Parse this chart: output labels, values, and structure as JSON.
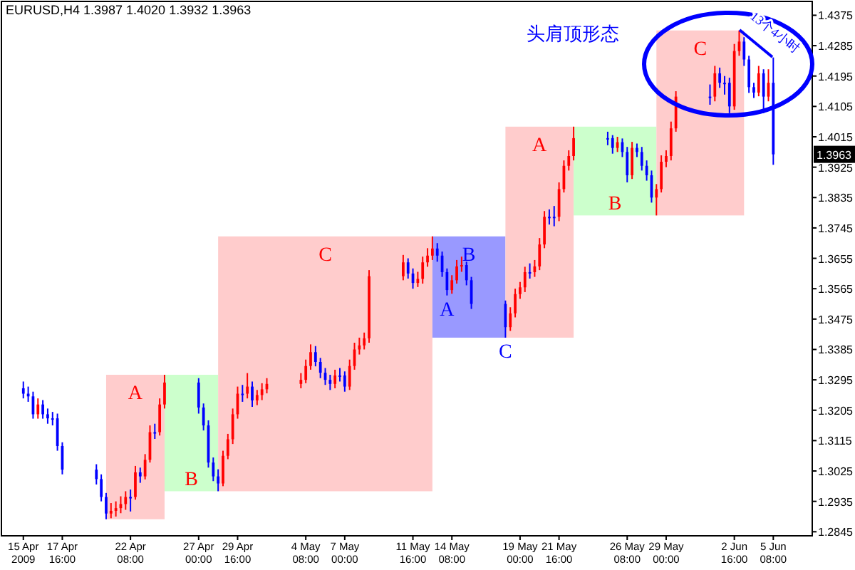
{
  "chart_data": {
    "type": "candlestick",
    "title": "EURUSD,H4  1.3987 1.4020 1.3932 1.3963",
    "x": [
      "2009-04-15T00:00",
      "2009-04-15T08:00",
      "2009-04-15T16:00",
      "2009-04-16T00:00",
      "2009-04-16T08:00",
      "2009-04-16T16:00",
      "2009-04-17T00:00",
      "2009-04-17T08:00",
      "2009-04-17T16:00",
      "2009-04-20T00:00",
      "2009-04-20T08:00",
      "2009-04-20T16:00",
      "2009-04-21T00:00",
      "2009-04-21T08:00",
      "2009-04-21T16:00",
      "2009-04-22T00:00",
      "2009-04-22T08:00",
      "2009-04-22T16:00",
      "2009-04-23T00:00",
      "2009-04-23T08:00",
      "2009-04-23T16:00",
      "2009-04-24T00:00",
      "2009-04-24T08:00",
      "2009-04-24T16:00",
      "2009-04-27T00:00",
      "2009-04-27T08:00",
      "2009-04-27T16:00",
      "2009-04-28T00:00",
      "2009-04-28T08:00",
      "2009-04-28T16:00",
      "2009-04-29T00:00",
      "2009-04-29T08:00",
      "2009-04-29T16:00",
      "2009-04-30T00:00",
      "2009-04-30T08:00",
      "2009-04-30T16:00",
      "2009-05-01T00:00",
      "2009-05-01T08:00",
      "2009-05-01T16:00",
      "2009-05-04T00:00",
      "2009-05-04T08:00",
      "2009-05-04T16:00",
      "2009-05-05T00:00",
      "2009-05-05T08:00",
      "2009-05-05T16:00",
      "2009-05-06T00:00",
      "2009-05-06T08:00",
      "2009-05-06T16:00",
      "2009-05-07T00:00",
      "2009-05-07T08:00",
      "2009-05-07T16:00",
      "2009-05-08T00:00",
      "2009-05-08T08:00",
      "2009-05-08T16:00",
      "2009-05-11T00:00",
      "2009-05-11T08:00",
      "2009-05-11T16:00",
      "2009-05-12T00:00",
      "2009-05-12T08:00",
      "2009-05-12T16:00",
      "2009-05-13T00:00",
      "2009-05-13T08:00",
      "2009-05-13T16:00",
      "2009-05-14T00:00",
      "2009-05-14T08:00",
      "2009-05-14T16:00",
      "2009-05-15T00:00",
      "2009-05-15T08:00",
      "2009-05-15T16:00",
      "2009-05-18T00:00",
      "2009-05-18T08:00",
      "2009-05-18T16:00",
      "2009-05-19T00:00",
      "2009-05-19T08:00",
      "2009-05-19T16:00",
      "2009-05-20T00:00",
      "2009-05-20T08:00",
      "2009-05-20T16:00",
      "2009-05-21T00:00",
      "2009-05-21T08:00",
      "2009-05-21T16:00",
      "2009-05-22T00:00",
      "2009-05-22T08:00",
      "2009-05-22T16:00",
      "2009-05-25T00:00",
      "2009-05-25T08:00",
      "2009-05-25T16:00",
      "2009-05-26T00:00",
      "2009-05-26T08:00",
      "2009-05-26T16:00",
      "2009-05-27T00:00",
      "2009-05-27T08:00",
      "2009-05-27T16:00",
      "2009-05-28T00:00",
      "2009-05-28T08:00",
      "2009-05-28T16:00",
      "2009-05-29T00:00",
      "2009-05-29T08:00",
      "2009-05-29T16:00",
      "2009-06-01T00:00",
      "2009-06-01T08:00",
      "2009-06-01T16:00",
      "2009-06-02T00:00",
      "2009-06-02T08:00",
      "2009-06-02T16:00",
      "2009-06-03T00:00",
      "2009-06-03T08:00",
      "2009-06-03T16:00",
      "2009-06-04T00:00",
      "2009-06-04T08:00",
      "2009-06-04T16:00",
      "2009-06-05T00:00",
      "2009-06-05T08:00"
    ],
    "ohlc": [
      [
        1.327,
        1.329,
        1.324,
        1.3254
      ],
      [
        1.3254,
        1.3275,
        1.323,
        1.3246
      ],
      [
        1.3246,
        1.326,
        1.318,
        1.3193
      ],
      [
        1.3193,
        1.324,
        1.318,
        1.3222
      ],
      [
        1.3222,
        1.3235,
        1.318,
        1.3193
      ],
      [
        1.3193,
        1.321,
        1.3165,
        1.3181
      ],
      [
        1.3181,
        1.32,
        1.316,
        1.3181
      ],
      [
        1.3181,
        1.3195,
        1.3085,
        1.3099
      ],
      [
        1.3099,
        1.311,
        1.3015,
        1.3029
      ],
      [
        1.3029,
        1.3045,
        1.2985,
        1.3001
      ],
      [
        1.3001,
        1.3015,
        1.2935,
        1.2948
      ],
      [
        1.2948,
        1.296,
        1.2882,
        1.2899
      ],
      [
        1.2899,
        1.293,
        1.2885,
        1.2907
      ],
      [
        1.2907,
        1.2935,
        1.289,
        1.2915
      ],
      [
        1.2915,
        1.295,
        1.29,
        1.2927
      ],
      [
        1.2927,
        1.2965,
        1.291,
        1.2948
      ],
      [
        1.2948,
        1.297,
        1.2905,
        1.2948
      ],
      [
        1.2948,
        1.304,
        1.294,
        1.3021
      ],
      [
        1.3021,
        1.3035,
        1.299,
        1.3009
      ],
      [
        1.3009,
        1.3075,
        1.3,
        1.3058
      ],
      [
        1.3058,
        1.316,
        1.305,
        1.314
      ],
      [
        1.314,
        1.3165,
        1.312,
        1.314
      ],
      [
        1.314,
        1.324,
        1.313,
        1.3222
      ],
      [
        1.3222,
        1.331,
        1.321,
        1.3287
      ],
      [
        1.3287,
        1.33,
        1.3195,
        1.3213
      ],
      [
        1.3213,
        1.3225,
        1.3145,
        1.316
      ],
      [
        1.316,
        1.3175,
        1.3035,
        1.305
      ],
      [
        1.305,
        1.3065,
        1.2995,
        1.3009
      ],
      [
        1.3009,
        1.303,
        1.2965,
        1.2988
      ],
      [
        1.2988,
        1.3085,
        1.298,
        1.307
      ],
      [
        1.307,
        1.3135,
        1.306,
        1.3119
      ],
      [
        1.3119,
        1.321,
        1.3105,
        1.3193
      ],
      [
        1.3193,
        1.3275,
        1.318,
        1.3254
      ],
      [
        1.3254,
        1.328,
        1.323,
        1.3254
      ],
      [
        1.3254,
        1.3315,
        1.324,
        1.3275
      ],
      [
        1.3275,
        1.329,
        1.3215,
        1.3234
      ],
      [
        1.3234,
        1.3265,
        1.322,
        1.325
      ],
      [
        1.325,
        1.3285,
        1.3235,
        1.3267
      ],
      [
        1.3267,
        1.33,
        1.3255,
        1.3283
      ],
      [
        1.3283,
        1.3315,
        1.327,
        1.3295
      ],
      [
        1.3295,
        1.3355,
        1.3285,
        1.3336
      ],
      [
        1.3336,
        1.34,
        1.3325,
        1.3377
      ],
      [
        1.3377,
        1.3395,
        1.3335,
        1.3348
      ],
      [
        1.3348,
        1.336,
        1.33,
        1.3316
      ],
      [
        1.3316,
        1.333,
        1.328,
        1.3295
      ],
      [
        1.3295,
        1.331,
        1.3265,
        1.3283
      ],
      [
        1.3283,
        1.3325,
        1.327,
        1.3308
      ],
      [
        1.3308,
        1.333,
        1.329,
        1.3308
      ],
      [
        1.3308,
        1.332,
        1.326,
        1.3275
      ],
      [
        1.3275,
        1.3355,
        1.3265,
        1.3336
      ],
      [
        1.3336,
        1.3405,
        1.3325,
        1.3385
      ],
      [
        1.3385,
        1.342,
        1.337,
        1.3397
      ],
      [
        1.3397,
        1.3435,
        1.3385,
        1.3418
      ],
      [
        1.3418,
        1.362,
        1.3405,
        1.3602
      ],
      [
        1.3602,
        1.3665,
        1.359,
        1.3643
      ],
      [
        1.3643,
        1.3655,
        1.3595,
        1.361
      ],
      [
        1.361,
        1.3625,
        1.3565,
        1.3582
      ],
      [
        1.3582,
        1.3615,
        1.357,
        1.3594
      ],
      [
        1.3594,
        1.366,
        1.358,
        1.3643
      ],
      [
        1.3643,
        1.3685,
        1.363,
        1.3663
      ],
      [
        1.3663,
        1.372,
        1.365,
        1.3684
      ],
      [
        1.3684,
        1.37,
        1.3645,
        1.3663
      ],
      [
        1.3663,
        1.3675,
        1.36,
        1.3614
      ],
      [
        1.3614,
        1.3625,
        1.3545,
        1.3561
      ],
      [
        1.3561,
        1.3605,
        1.355,
        1.359
      ],
      [
        1.359,
        1.365,
        1.358,
        1.3631
      ],
      [
        1.3631,
        1.366,
        1.3615,
        1.3635
      ],
      [
        1.3635,
        1.3645,
        1.3575,
        1.359
      ],
      [
        1.359,
        1.36,
        1.3505,
        1.352
      ],
      [
        1.352,
        1.353,
        1.342,
        1.3451
      ],
      [
        1.3451,
        1.351,
        1.344,
        1.3492
      ],
      [
        1.3492,
        1.3565,
        1.348,
        1.3549
      ],
      [
        1.3549,
        1.3585,
        1.3535,
        1.3569
      ],
      [
        1.3569,
        1.363,
        1.3555,
        1.3614
      ],
      [
        1.3614,
        1.364,
        1.3595,
        1.3614
      ],
      [
        1.3614,
        1.365,
        1.36,
        1.3631
      ],
      [
        1.3631,
        1.3715,
        1.362,
        1.3696
      ],
      [
        1.3696,
        1.3795,
        1.3685,
        1.3778
      ],
      [
        1.3778,
        1.38,
        1.3755,
        1.3778
      ],
      [
        1.3778,
        1.381,
        1.375,
        1.3778
      ],
      [
        1.3778,
        1.388,
        1.3765,
        1.386
      ],
      [
        1.386,
        1.3945,
        1.385,
        1.3929
      ],
      [
        1.3929,
        1.3975,
        1.3915,
        1.3958
      ],
      [
        1.3958,
        1.4045,
        1.3945,
        1.4011
      ],
      [
        1.4011,
        1.403,
        1.399,
        1.4011
      ],
      [
        1.4011,
        1.402,
        1.3965,
        1.3982
      ],
      [
        1.3982,
        1.4015,
        1.397,
        1.3999
      ],
      [
        1.3999,
        1.401,
        1.3955,
        1.397
      ],
      [
        1.397,
        1.3985,
        1.388,
        1.3901
      ],
      [
        1.3901,
        1.4,
        1.389,
        1.3982
      ],
      [
        1.3982,
        1.3995,
        1.3955,
        1.397
      ],
      [
        1.397,
        1.3985,
        1.3915,
        1.3929
      ],
      [
        1.3929,
        1.3945,
        1.3885,
        1.3901
      ],
      [
        1.3901,
        1.3915,
        1.382,
        1.3835
      ],
      [
        1.3835,
        1.3875,
        1.3782,
        1.386
      ],
      [
        1.386,
        1.396,
        1.385,
        1.3941
      ],
      [
        1.3941,
        1.3975,
        1.3925,
        1.3958
      ],
      [
        1.3958,
        1.406,
        1.3945,
        1.404
      ],
      [
        1.404,
        1.415,
        1.403,
        1.4134
      ],
      [
        1.4134,
        1.417,
        1.411,
        1.4134
      ],
      [
        1.4134,
        1.4225,
        1.412,
        1.4203
      ],
      [
        1.4203,
        1.422,
        1.416,
        1.4175
      ],
      [
        1.4175,
        1.4195,
        1.414,
        1.4175
      ],
      [
        1.4175,
        1.419,
        1.4085,
        1.4105
      ],
      [
        1.4105,
        1.429,
        1.4095,
        1.4269
      ],
      [
        1.4269,
        1.433,
        1.4255,
        1.4297
      ],
      [
        1.4297,
        1.431,
        1.4225,
        1.4244
      ],
      [
        1.4244,
        1.4255,
        1.4145,
        1.4162
      ],
      [
        1.4162,
        1.4175,
        1.413,
        1.4146
      ],
      [
        1.4146,
        1.4225,
        1.4135,
        1.4203
      ],
      [
        1.4203,
        1.4215,
        1.4085,
        1.4134
      ],
      [
        1.4134,
        1.4215,
        1.412,
        1.4175
      ],
      [
        1.4175,
        1.425,
        1.3932,
        1.3963
      ]
    ],
    "colors": [
      "#0000ff",
      "#0000ff",
      "#0000ff",
      "#ff0000",
      "#0000ff",
      "#0000ff",
      "#0000ff",
      "#0000ff",
      "#0000ff",
      "#0000ff",
      "#0000ff",
      "#0000ff",
      "#ff0000",
      "#ff0000",
      "#ff0000",
      "#ff0000",
      "#0000ff",
      "#ff0000",
      "#0000ff",
      "#ff0000",
      "#ff0000",
      "#0000ff",
      "#ff0000",
      "#ff0000",
      "#0000ff",
      "#0000ff",
      "#0000ff",
      "#0000ff",
      "#0000ff",
      "#ff0000",
      "#ff0000",
      "#ff0000",
      "#ff0000",
      "#0000ff",
      "#ff0000",
      "#0000ff",
      "#ff0000",
      "#ff0000",
      "#ff0000",
      "#ff0000",
      "#ff0000",
      "#ff0000",
      "#0000ff",
      "#0000ff",
      "#0000ff",
      "#0000ff",
      "#ff0000",
      "#0000ff",
      "#0000ff",
      "#ff0000",
      "#ff0000",
      "#ff0000",
      "#ff0000",
      "#ff0000",
      "#ff0000",
      "#0000ff",
      "#0000ff",
      "#ff0000",
      "#ff0000",
      "#ff0000",
      "#ff0000",
      "#0000ff",
      "#0000ff",
      "#0000ff",
      "#ff0000",
      "#ff0000",
      "#ff0000",
      "#0000ff",
      "#0000ff",
      "#0000ff",
      "#ff0000",
      "#ff0000",
      "#ff0000",
      "#ff0000",
      "#0000ff",
      "#ff0000",
      "#ff0000",
      "#ff0000",
      "#0000ff",
      "#0000ff",
      "#ff0000",
      "#ff0000",
      "#ff0000",
      "#ff0000",
      "#0000ff",
      "#0000ff",
      "#ff0000",
      "#0000ff",
      "#0000ff",
      "#ff0000",
      "#0000ff",
      "#0000ff",
      "#0000ff",
      "#0000ff",
      "#ff0000",
      "#ff0000",
      "#ff0000",
      "#ff0000",
      "#ff0000",
      "#0000ff",
      "#ff0000",
      "#0000ff",
      "#0000ff",
      "#0000ff",
      "#ff0000",
      "#ff0000",
      "#0000ff",
      "#0000ff",
      "#0000ff",
      "#ff0000",
      "#0000ff",
      "#ff0000",
      "#0000ff"
    ],
    "xlim": [
      "2009-04-13T12:00",
      "2009-06-08T00:00"
    ],
    "ylim": [
      1.2833,
      1.4416
    ],
    "yticks": [
      1.2845,
      1.2935,
      1.3025,
      1.3115,
      1.3205,
      1.3295,
      1.3385,
      1.3475,
      1.3565,
      1.3655,
      1.3745,
      1.3835,
      1.3925,
      1.4015,
      1.4105,
      1.4195,
      1.4285,
      1.4375
    ],
    "xticks": [
      {
        "value": "2009-04-15T00:00",
        "label": "15 Apr 2009"
      },
      {
        "value": "2009-04-17T16:00",
        "label": "17 Apr 16:00"
      },
      {
        "value": "2009-04-22T08:00",
        "label": "22 Apr 08:00"
      },
      {
        "value": "2009-04-27T00:00",
        "label": "27 Apr 00:00"
      },
      {
        "value": "2009-04-29T16:00",
        "label": "29 Apr 16:00"
      },
      {
        "value": "2009-05-04T08:00",
        "label": "4 May 08:00"
      },
      {
        "value": "2009-05-07T00:00",
        "label": "7 May 00:00"
      },
      {
        "value": "2009-05-11T16:00",
        "label": "11 May 16:00"
      },
      {
        "value": "2009-05-14T08:00",
        "label": "14 May 08:00"
      },
      {
        "value": "2009-05-19T00:00",
        "label": "19 May 00:00"
      },
      {
        "value": "2009-05-21T16:00",
        "label": "21 May 16:00"
      },
      {
        "value": "2009-05-26T08:00",
        "label": "26 May 08:00"
      },
      {
        "value": "2009-05-29T00:00",
        "label": "29 May 00:00"
      },
      {
        "value": "2009-06-02T16:00",
        "label": "2 Jun 16:00"
      },
      {
        "value": "2009-06-05T08:00",
        "label": "5 Jun 08:00"
      }
    ],
    "bands": [
      {
        "axis": "x",
        "from": "2009-04-20T16:00",
        "to": "2009-04-24T16:00",
        "label": "A",
        "color": "#ffcccc"
      },
      {
        "axis": "x",
        "from": "2009-04-24T16:00",
        "to": "2009-04-28T08:00",
        "label": "B",
        "color": "#ccffcc"
      },
      {
        "axis": "x",
        "from": "2009-04-28T08:00",
        "to": "2009-05-13T00:00",
        "label": "C",
        "color": "#ffcccc"
      },
      {
        "axis": "x",
        "from": "2009-05-13T00:00",
        "to": "2009-05-18T00:00",
        "label": "B",
        "color": "#9999ff"
      },
      {
        "axis": "x",
        "from": "2009-05-18T00:00",
        "to": "2009-05-22T16:00",
        "label": "A",
        "color": "#ffcccc"
      },
      {
        "axis": "x",
        "from": "2009-05-22T16:00",
        "to": "2009-05-28T08:00",
        "label": "B",
        "color": "#ccffcc"
      },
      {
        "axis": "x",
        "from": "2009-05-28T08:00",
        "to": "2009-06-03T08:00",
        "label": "C",
        "color": "#ffcccc"
      }
    ],
    "annotations": [
      "头肩顶形态",
      "13个4小时",
      {
        "text": "A",
        "x": "2009-05-14T00:00",
        "y": 1.3545
      },
      {
        "text": "C",
        "x": "2009-05-18T00:00",
        "y": 1.342
      },
      "1.3963"
    ]
  }
}
